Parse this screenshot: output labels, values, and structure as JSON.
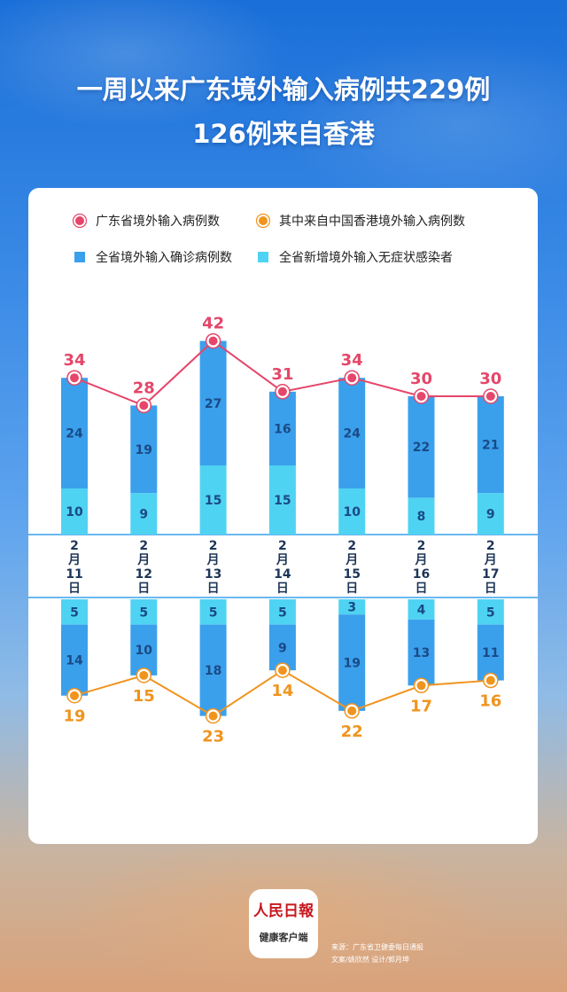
{
  "header": {
    "title_line1": "一周以来广东境外输入病例共229例",
    "title_line2": "126例来自香港"
  },
  "footer": {
    "logo_name": "人民日報",
    "logo_sub": "健康客户端",
    "source": "来源：广东省卫健委每日通报",
    "credits": "文案/姚欣然  设计/郭月坤"
  },
  "colors": {
    "line_total": "#e5466a",
    "line_hk": "#f0941e",
    "bar_confirmed": "#3aa0ec",
    "bar_asymptomatic": "#4fd3f2",
    "bar_text": "#1a4a86",
    "date_text": "#1d3557"
  },
  "chart_data": {
    "type": "bar",
    "categories": [
      "2月11日",
      "2月12日",
      "2月13日",
      "2月14日",
      "2月15日",
      "2月16日",
      "2月17日"
    ],
    "upper": {
      "stacked": true,
      "series": [
        {
          "name": "全省新增境外输入无症状感染者",
          "values": [
            10,
            9,
            15,
            15,
            10,
            8,
            9
          ]
        },
        {
          "name": "全省境外输入确诊病例数",
          "values": [
            24,
            19,
            27,
            16,
            24,
            22,
            21
          ]
        }
      ],
      "line": {
        "name": "广东省境外输入病例数",
        "values": [
          34,
          28,
          42,
          31,
          34,
          30,
          30
        ]
      }
    },
    "lower": {
      "stacked": true,
      "direction": "down",
      "series": [
        {
          "name": "全省新增境外输入无症状感染者",
          "values": [
            5,
            5,
            5,
            5,
            3,
            4,
            5
          ]
        },
        {
          "name": "全省境外输入确诊病例数",
          "values": [
            14,
            10,
            18,
            9,
            19,
            13,
            11
          ]
        }
      ],
      "line": {
        "name": "其中来自中国香港境外输入病例数",
        "values": [
          19,
          15,
          23,
          14,
          22,
          17,
          16
        ]
      }
    },
    "legend": [
      {
        "name": "广东省境外输入病例数",
        "marker": "circle",
        "color": "#e5466a"
      },
      {
        "name": "其中来自中国香港境外输入病例数",
        "marker": "circle",
        "color": "#f0941e"
      },
      {
        "name": "全省境外输入确诊病例数",
        "marker": "square",
        "color": "#3aa0ec"
      },
      {
        "name": "全省新增境外输入无症状感染者",
        "marker": "square",
        "color": "#4fd3f2"
      }
    ],
    "legend_position": "top",
    "grid": false
  }
}
